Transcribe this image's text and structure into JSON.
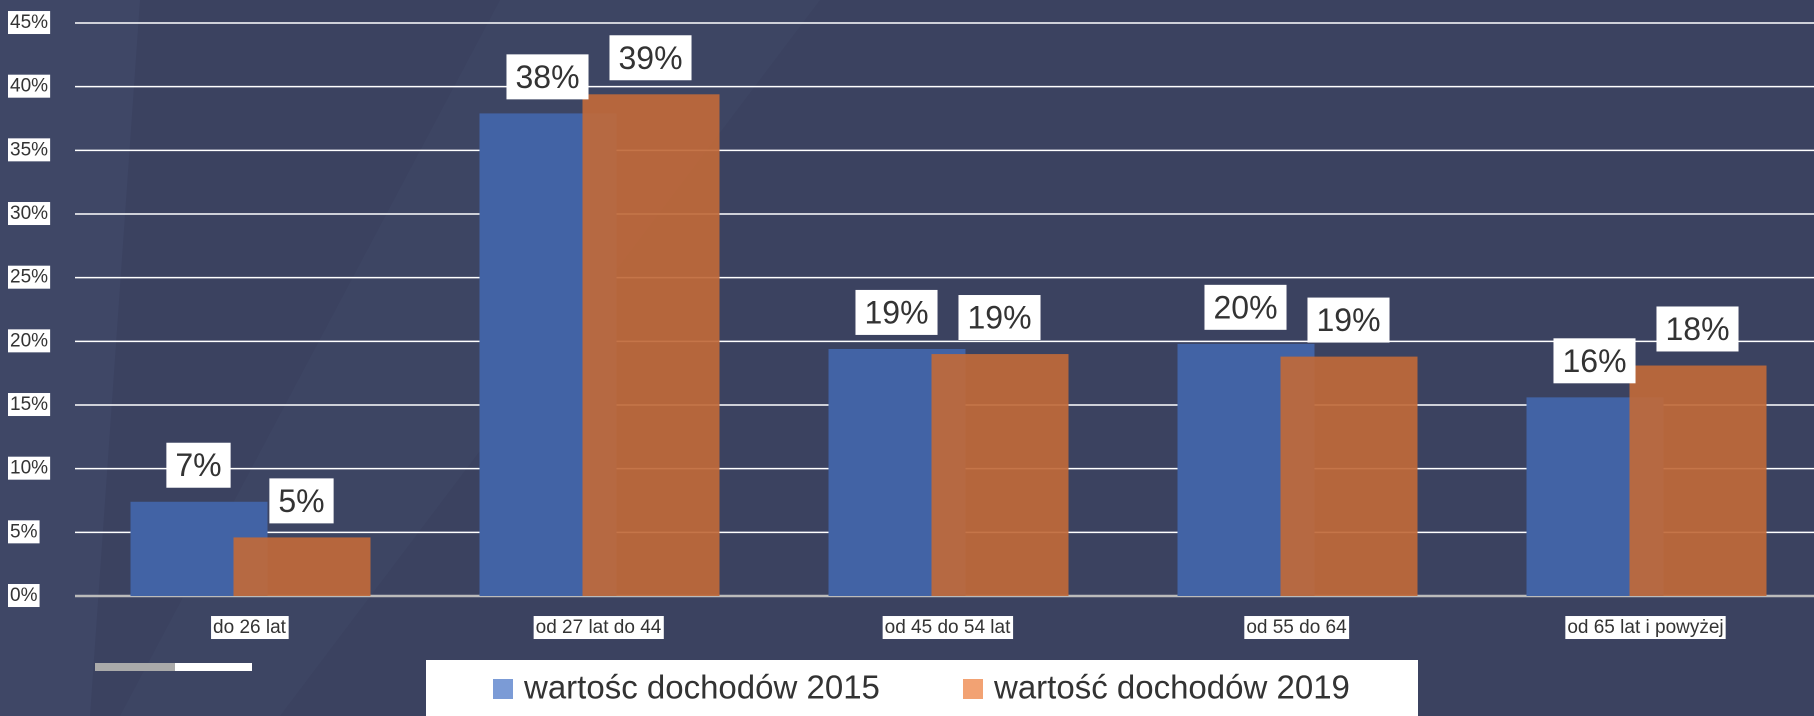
{
  "chart_data": {
    "type": "bar",
    "categories": [
      "do 26 lat",
      "od 27 lat do 44",
      "od 45 do 54 lat",
      "od 55 do 64",
      "od 65 lat i powyżej"
    ],
    "series": [
      {
        "name": "wartośc dochodów 2015",
        "color": "#4263a5",
        "legend_color": "#7b9bd6",
        "values": [
          7.4,
          37.9,
          19.4,
          19.8,
          15.6
        ],
        "value_labels": [
          "7%",
          "38%",
          "19%",
          "20%",
          "16%"
        ]
      },
      {
        "name": "wartość dochodów 2019",
        "color": "#c0693a",
        "legend_color": "#f2a273",
        "values": [
          4.6,
          39.4,
          19.0,
          18.8,
          18.1
        ],
        "value_labels": [
          "5%",
          "39%",
          "19%",
          "19%",
          "18%"
        ]
      }
    ],
    "ylim": [
      0,
      45
    ],
    "yticks": [
      {
        "value": 0,
        "label": "0%"
      },
      {
        "value": 5,
        "label": "5%"
      },
      {
        "value": 10,
        "label": "10%"
      },
      {
        "value": 15,
        "label": "15%"
      },
      {
        "value": 20,
        "label": "20%"
      },
      {
        "value": 25,
        "label": "25%"
      },
      {
        "value": 30,
        "label": "30%"
      },
      {
        "value": 35,
        "label": "35%"
      },
      {
        "value": 40,
        "label": "40%"
      },
      {
        "value": 45,
        "label": "45%"
      }
    ],
    "grid": true,
    "legend": "bottom"
  }
}
